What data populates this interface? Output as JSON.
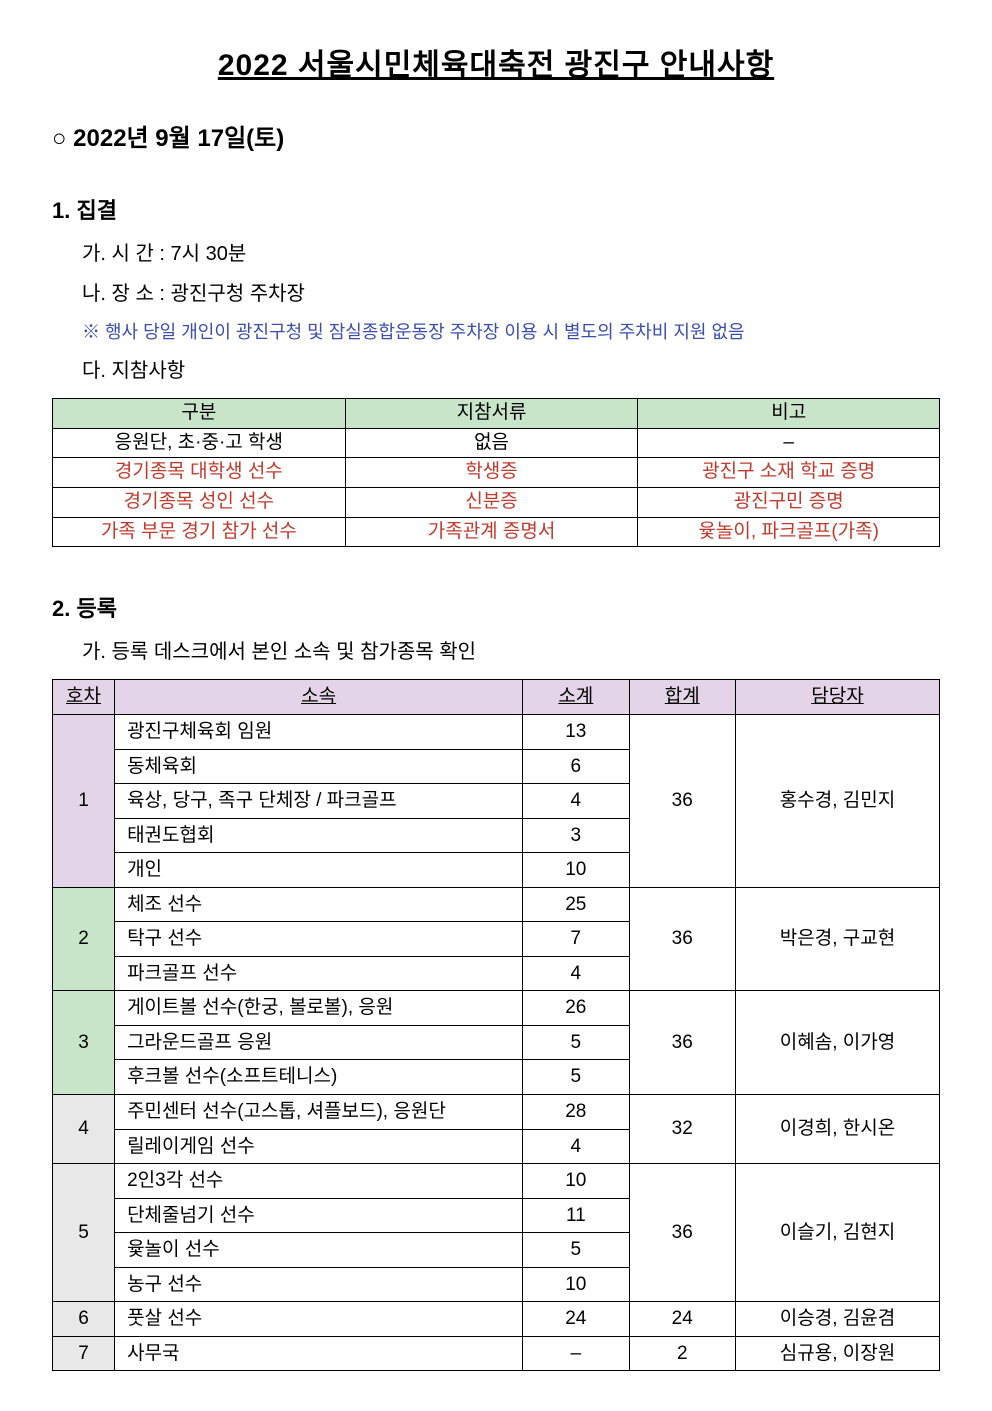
{
  "title": "2022 서울시민체육대축전 광진구 안내사항",
  "date_line": "○ 2022년 9월 17일(토)",
  "section1": {
    "heading": "1. 집결",
    "item_a": "가. 시 간 : 7시 30분",
    "item_b": "나. 장 소 : 광진구청 주차장",
    "note": "※ 행사 당일 개인이 광진구청 및 잠실종합운동장 주차장 이용 시 별도의 주차비 지원 없음",
    "item_c": "다. 지참사항"
  },
  "table1": {
    "headers": [
      "구분",
      "지참서류",
      "비고"
    ],
    "rows": [
      {
        "cells": [
          "응원단, 초·중·고 학생",
          "없음",
          "–"
        ],
        "red": false
      },
      {
        "cells": [
          "경기종목 대학생 선수",
          "학생증",
          "광진구 소재 학교 증명"
        ],
        "red": true
      },
      {
        "cells": [
          "경기종목 성인 선수",
          "신분증",
          "광진구민 증명"
        ],
        "red": true
      },
      {
        "cells": [
          "가족 부문 경기 참가 선수",
          "가족관계 증명서",
          "윷놀이, 파크골프(가족)"
        ],
        "red": true
      }
    ],
    "col_widths": [
      "33%",
      "33%",
      "34%"
    ],
    "header_bg": "#c9e5c9",
    "text_red": "#c0392b"
  },
  "section2": {
    "heading": "2. 등록",
    "item_a": "가. 등록 데스크에서 본인 소속 및 참가종목 확인"
  },
  "table2": {
    "columns": [
      "호차",
      "소속",
      "소계",
      "합계",
      "담당자"
    ],
    "col_widths": [
      "7%",
      "46%",
      "12%",
      "12%",
      "23%"
    ],
    "header_bg": "#e3d4e7",
    "groups": [
      {
        "bus": "1",
        "total": "36",
        "managers": "홍수경, 김민지",
        "bg": "#e3d4e7",
        "rows": [
          {
            "affil": "광진구체육회 임원",
            "subtotal": "13"
          },
          {
            "affil": "동체육회",
            "subtotal": "6"
          },
          {
            "affil": "육상, 당구, 족구 단체장 / 파크골프",
            "subtotal": "4"
          },
          {
            "affil": "태권도협회",
            "subtotal": "3"
          },
          {
            "affil": "개인",
            "subtotal": "10"
          }
        ]
      },
      {
        "bus": "2",
        "total": "36",
        "managers": "박은경, 구교현",
        "bg": "#c9e5c9",
        "rows": [
          {
            "affil": "체조 선수",
            "subtotal": "25"
          },
          {
            "affil": "탁구 선수",
            "subtotal": "7"
          },
          {
            "affil": "파크골프 선수",
            "subtotal": "4"
          }
        ]
      },
      {
        "bus": "3",
        "total": "36",
        "managers": "이혜솜, 이가영",
        "bg": "#c9e5c9",
        "rows": [
          {
            "affil": "게이트볼 선수(한궁, 볼로볼), 응원",
            "subtotal": "26"
          },
          {
            "affil": "그라운드골프 응원",
            "subtotal": "5"
          },
          {
            "affil": "후크볼 선수(소프트테니스)",
            "subtotal": "5"
          }
        ]
      },
      {
        "bus": "4",
        "total": "32",
        "managers": "이경희, 한시온",
        "bg": "#e8e8e8",
        "rows": [
          {
            "affil": "주민센터 선수(고스톱, 셔플보드), 응원단",
            "subtotal": "28"
          },
          {
            "affil": "릴레이게임 선수",
            "subtotal": "4"
          }
        ]
      },
      {
        "bus": "5",
        "total": "36",
        "managers": "이슬기, 김현지",
        "bg": "#e8e8e8",
        "rows": [
          {
            "affil": "2인3각 선수",
            "subtotal": "10"
          },
          {
            "affil": "단체줄넘기 선수",
            "subtotal": "11"
          },
          {
            "affil": "윷놀이 선수",
            "subtotal": "5"
          },
          {
            "affil": "농구 선수",
            "subtotal": "10"
          }
        ]
      },
      {
        "bus": "6",
        "total": "24",
        "managers": "이승경, 김윤겸",
        "bg": "#e8e8e8",
        "rows": [
          {
            "affil": "풋살 선수",
            "subtotal": "24"
          }
        ]
      },
      {
        "bus": "7",
        "total": "2",
        "managers": "심규용, 이장원",
        "bg": "#e8e8e8",
        "rows": [
          {
            "affil": "사무국",
            "subtotal": "–"
          }
        ]
      }
    ]
  }
}
